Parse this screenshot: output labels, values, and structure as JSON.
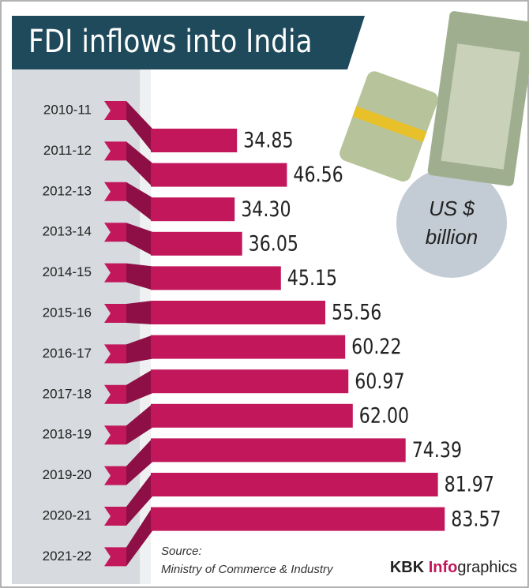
{
  "chart_data": {
    "type": "bar",
    "title": "FDI inflows into India",
    "unit": [
      "US $",
      "billion"
    ],
    "categories": [
      "2010-11",
      "2011-12",
      "2012-13",
      "2013-14",
      "2014-15",
      "2015-16",
      "2016-17",
      "2017-18",
      "2018-19",
      "2019-20",
      "2020-21",
      "2021-22"
    ],
    "values": [
      34.85,
      46.56,
      34.3,
      36.05,
      45.15,
      55.56,
      60.22,
      60.97,
      62,
      74.39,
      81.97,
      83.57
    ],
    "value_labels": [
      "34.85",
      "46.56",
      "34.30",
      "36.05",
      "45.15",
      "55.56",
      "60.22",
      "60.97",
      "62.00",
      "74.39",
      "81.97",
      "83.57"
    ],
    "color": "#c2185b",
    "source": [
      "Source:",
      "Ministry of Commerce & Industry"
    ],
    "credit": [
      "KBK ",
      "Info",
      "graphics"
    ]
  }
}
